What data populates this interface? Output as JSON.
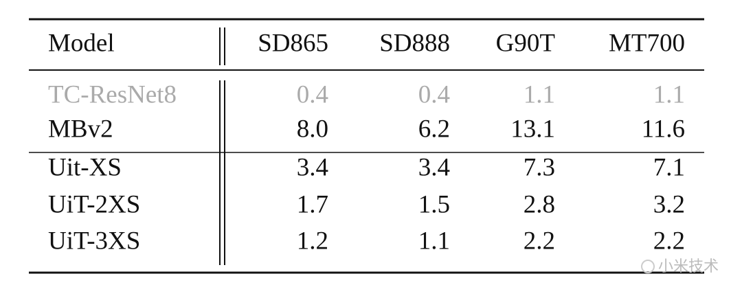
{
  "table": {
    "header": [
      "Model",
      "SD865",
      "SD888",
      "G90T",
      "MT700"
    ],
    "rows": [
      [
        "TC-ResNet8",
        "0.4",
        "0.4",
        "1.1",
        "1.1"
      ],
      [
        "MBv2",
        "8.0",
        "6.2",
        "13.1",
        "11.6"
      ],
      [
        "Uit-XS",
        "3.4",
        "3.4",
        "7.3",
        "7.1"
      ],
      [
        "UiT-2XS",
        "1.7",
        "1.5",
        "2.8",
        "3.2"
      ],
      [
        "UiT-3XS",
        "1.2",
        "1.1",
        "2.2",
        "2.2"
      ]
    ]
  },
  "watermark": "小米技术"
}
